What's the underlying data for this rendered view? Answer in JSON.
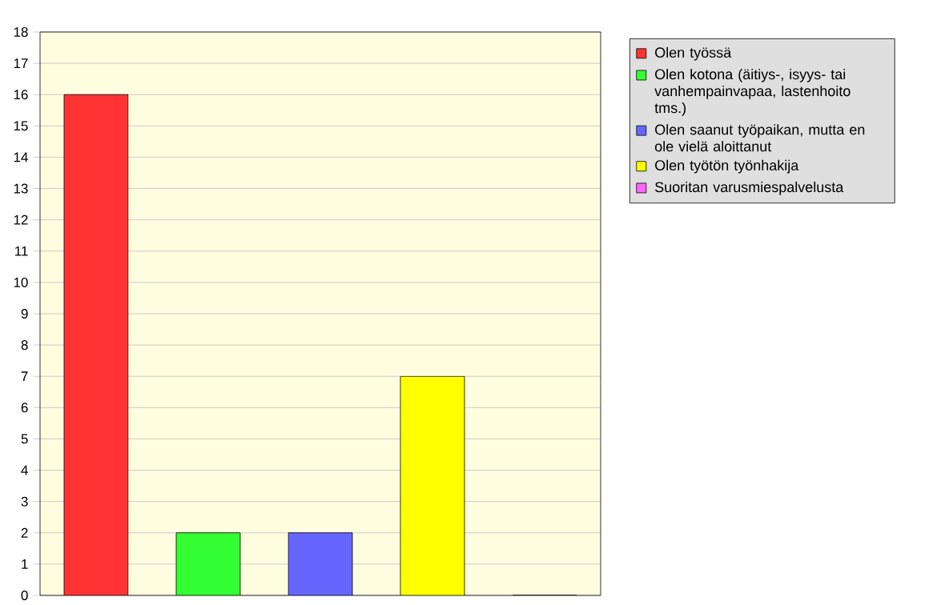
{
  "chart_data": {
    "type": "bar",
    "categories": [
      null,
      null,
      null,
      null,
      null
    ],
    "series": [
      {
        "name": "Olen työssä",
        "color": "#ff3333",
        "values": [
          16,
          null,
          null,
          null,
          null
        ]
      },
      {
        "name": "Olen kotona (äitiys-, isyys- tai vanhempainvapaa, lastenhoito tms.)",
        "color": "#33ff33",
        "values": [
          null,
          2,
          null,
          null,
          null
        ]
      },
      {
        "name": "Olen saanut työpaikan, mutta en ole vielä aloittanut",
        "color": "#6666ff",
        "values": [
          null,
          null,
          2,
          null,
          null
        ]
      },
      {
        "name": "Olen työtön työnhakija",
        "color": "#ffff00",
        "values": [
          null,
          null,
          null,
          7,
          null
        ]
      },
      {
        "name": "Suoritan varusmiespalvelusta",
        "color": "#ff66ff",
        "values": [
          null,
          null,
          null,
          null,
          0
        ]
      }
    ],
    "ylim": [
      0,
      18
    ],
    "yticks": [
      0,
      1,
      2,
      3,
      4,
      5,
      6,
      7,
      8,
      9,
      10,
      11,
      12,
      13,
      14,
      15,
      16,
      17,
      18
    ],
    "grid": "y",
    "legend": "top right"
  }
}
